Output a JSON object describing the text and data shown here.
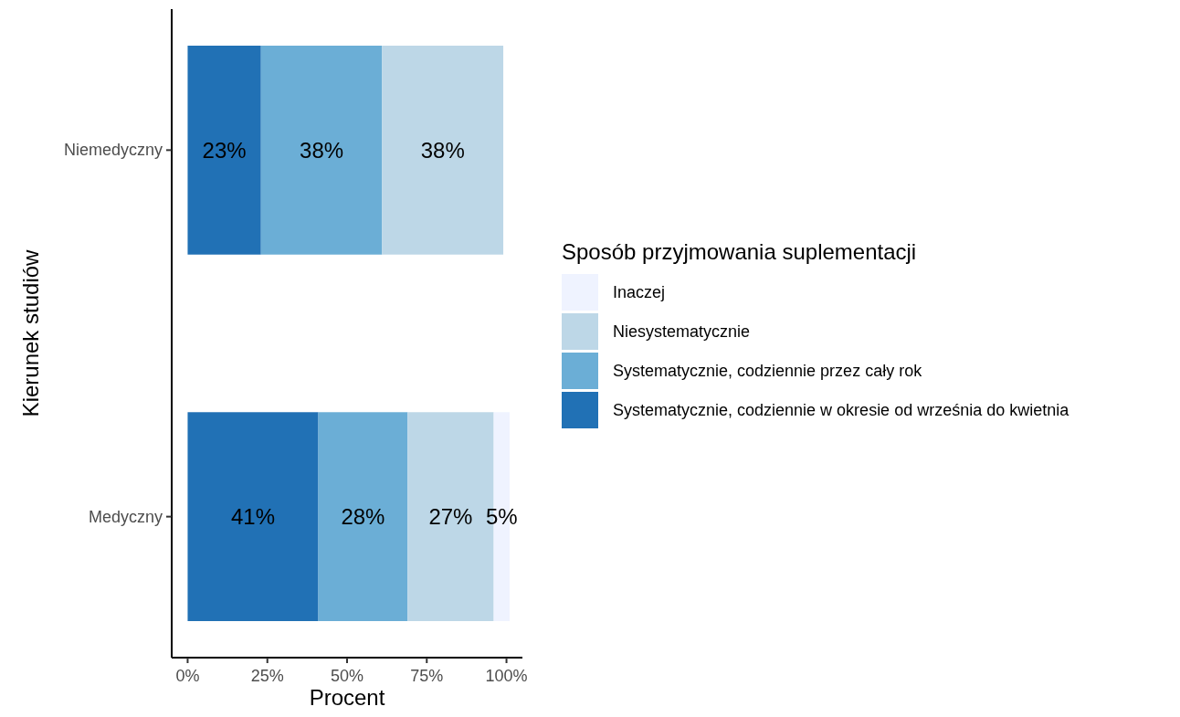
{
  "chart_data": {
    "type": "bar",
    "orientation": "horizontal",
    "stacked": true,
    "categories": [
      "Niemedyczny",
      "Medyczny"
    ],
    "series": [
      {
        "name": "Systematycznie, codziennie w okresie od września do kwietnia",
        "color": "#2171b5",
        "values": [
          23,
          41
        ],
        "value_labels": [
          "23%",
          "41%"
        ]
      },
      {
        "name": "Systematycznie, codziennie przez cały rok",
        "color": "#6baed6",
        "values": [
          38,
          28
        ],
        "value_labels": [
          "38%",
          "28%"
        ]
      },
      {
        "name": "Niesystematycznie",
        "color": "#bdd7e7",
        "values": [
          38,
          27
        ],
        "value_labels": [
          "38%",
          "27%"
        ]
      },
      {
        "name": "Inaczej",
        "color": "#eff3ff",
        "values": [
          null,
          5
        ],
        "value_labels": [
          null,
          "5%"
        ]
      }
    ],
    "xlabel": "Procent",
    "ylabel": "Kierunek studiów",
    "legend_title": "Sposób przyjmowania suplementacji",
    "xlim": [
      -5,
      105
    ],
    "xticks": [
      {
        "value": 0,
        "label": "0%"
      },
      {
        "value": 25,
        "label": "25%"
      },
      {
        "value": 50,
        "label": "50%"
      },
      {
        "value": 75,
        "label": "75%"
      },
      {
        "value": 100,
        "label": "100%"
      }
    ],
    "legend": "right",
    "grid": false
  }
}
